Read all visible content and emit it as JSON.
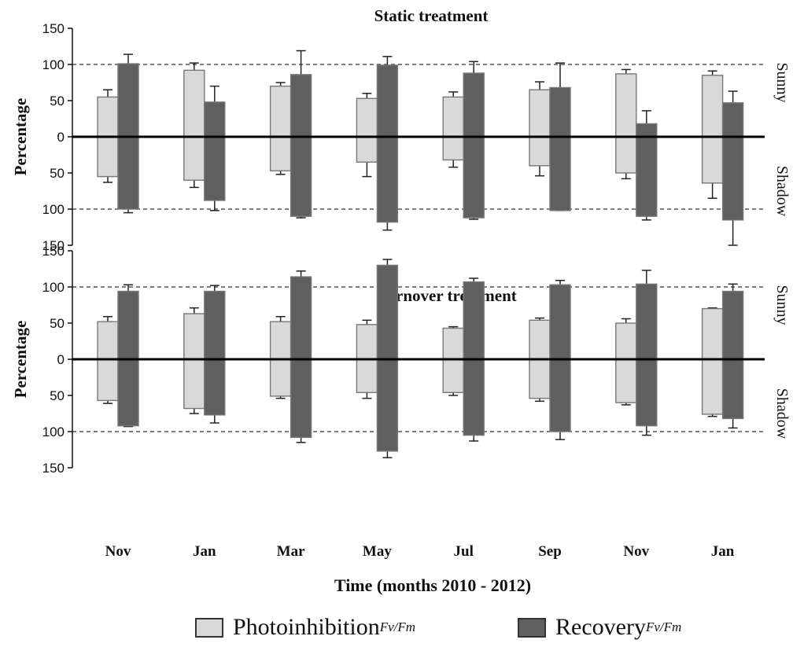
{
  "chart_data": {
    "type": "bar",
    "xlabel": "Time (months 2010 - 2012)",
    "categories": [
      "Nov",
      "Jan",
      "Mar",
      "May",
      "Jul",
      "Sep",
      "Nov",
      "Jan"
    ],
    "y_ticks": [
      "150",
      "100",
      "50",
      "0",
      "50",
      "100",
      "150"
    ],
    "ylabel": "Percentage",
    "upper_side_label": "Sunny",
    "lower_side_label": "Shadow",
    "reference_lines": [
      100,
      -100
    ],
    "ylim": [
      -150,
      150
    ],
    "colors": {
      "photoinhibition": "#d9d9d9",
      "recovery": "#5f5f5f"
    },
    "legend": [
      {
        "key": "photoinhibition",
        "label": "Photoinhibition",
        "subscript": "Fv/Fm"
      },
      {
        "key": "recovery",
        "label": "Recovery",
        "subscript": "Fv/Fm"
      }
    ],
    "panels": [
      {
        "title": "Static treatment",
        "series": [
          {
            "key": "photoinhibition",
            "sunny": [
              55,
              92,
              70,
              53,
              55,
              65,
              87,
              85
            ],
            "sunny_err": [
              10,
              10,
              5,
              7,
              7,
              11,
              6,
              6
            ],
            "shadow": [
              55,
              60,
              47,
              35,
              32,
              40,
              50,
              64
            ],
            "shadow_err": [
              8,
              10,
              5,
              20,
              10,
              14,
              8,
              21
            ]
          },
          {
            "key": "recovery",
            "sunny": [
              101,
              48,
              86,
              99,
              88,
              68,
              18,
              47
            ],
            "sunny_err": [
              13,
              22,
              33,
              12,
              16,
              34,
              18,
              16
            ],
            "shadow": [
              100,
              88,
              110,
              118,
              112,
              102,
              110,
              115
            ],
            "shadow_err": [
              5,
              14,
              2,
              11,
              2,
              0,
              5,
              35
            ]
          }
        ]
      },
      {
        "title": "Turnover treatment",
        "series": [
          {
            "key": "photoinhibition",
            "sunny": [
              52,
              63,
              52,
              48,
              43,
              54,
              50,
              70
            ],
            "sunny_err": [
              7,
              8,
              7,
              6,
              2,
              3,
              6,
              1
            ],
            "shadow": [
              57,
              68,
              51,
              46,
              46,
              54,
              60,
              76
            ],
            "shadow_err": [
              4,
              7,
              3,
              8,
              4,
              4,
              3,
              3
            ]
          },
          {
            "key": "recovery",
            "sunny": [
              94,
              94,
              114,
              130,
              107,
              103,
              104,
              94
            ],
            "sunny_err": [
              9,
              8,
              8,
              8,
              5,
              6,
              19,
              10
            ],
            "shadow": [
              92,
              77,
              108,
              127,
              105,
              100,
              92,
              82
            ],
            "shadow_err": [
              1,
              11,
              7,
              9,
              8,
              11,
              13,
              13
            ]
          }
        ]
      }
    ]
  }
}
